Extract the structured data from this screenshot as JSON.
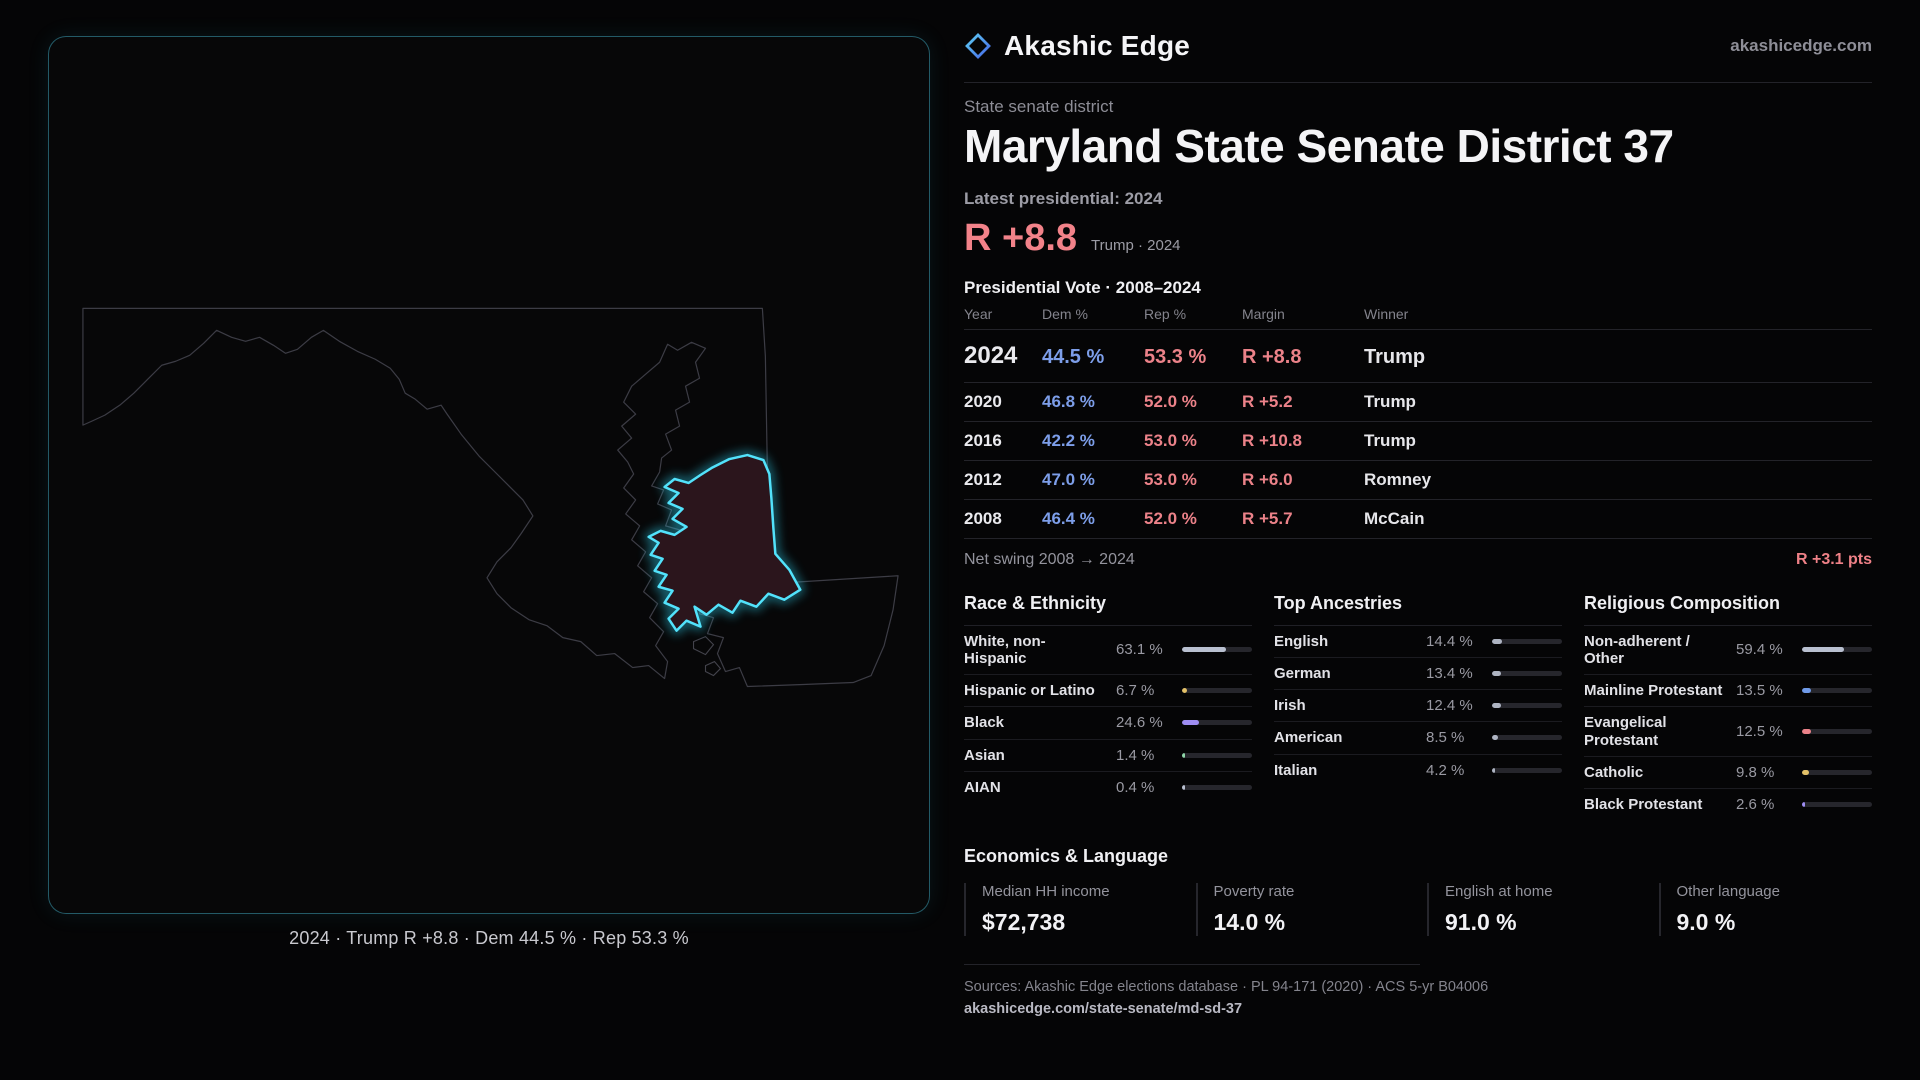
{
  "brand": {
    "name": "Akashic Edge",
    "site": "akashicedge.com",
    "logo": "diamond-icon"
  },
  "header": {
    "kicker": "State senate district",
    "title": "Maryland State Senate District 37",
    "latest": "Latest presidential: 2024",
    "margin": "R +8.8",
    "margin_note": "Trump · 2024"
  },
  "map": {
    "caption": "2024 · Trump R +8.8 · Dem 44.5 % · Rep 53.3 %",
    "district_name": "district-37",
    "accent": "#3fd9f5",
    "district_fill": "#2b151c"
  },
  "votes": {
    "title": "Presidential Vote · 2008–2024",
    "columns": [
      "Year",
      "Dem %",
      "Rep %",
      "Margin",
      "Winner"
    ],
    "rows": [
      {
        "year": "2024",
        "dem": "44.5 %",
        "rep": "53.3 %",
        "margin": "R +8.8",
        "winner": "Trump",
        "highlight": true
      },
      {
        "year": "2020",
        "dem": "46.8 %",
        "rep": "52.0 %",
        "margin": "R +5.2",
        "winner": "Trump",
        "highlight": false
      },
      {
        "year": "2016",
        "dem": "42.2 %",
        "rep": "53.0 %",
        "margin": "R +10.8",
        "winner": "Trump",
        "highlight": false
      },
      {
        "year": "2012",
        "dem": "47.0 %",
        "rep": "53.0 %",
        "margin": "R +6.0",
        "winner": "Romney",
        "highlight": false
      },
      {
        "year": "2008",
        "dem": "46.4 %",
        "rep": "52.0 %",
        "margin": "R +5.7",
        "winner": "McCain",
        "highlight": false
      }
    ],
    "swing_label": "Net swing 2008 → 2024",
    "swing_value": "R +3.1 pts"
  },
  "demographics": [
    {
      "title": "Race & Ethnicity",
      "rows": [
        {
          "label": "White, non-Hispanic",
          "value": "63.1 %",
          "pct": 63.1,
          "color": "#b9c0d0"
        },
        {
          "label": "Hispanic or Latino",
          "value": "6.7 %",
          "pct": 6.7,
          "color": "#e3c168"
        },
        {
          "label": "Black",
          "value": "24.6 %",
          "pct": 24.6,
          "color": "#9e8df2"
        },
        {
          "label": "Asian",
          "value": "1.4 %",
          "pct": 1.4,
          "color": "#8fd6a8"
        },
        {
          "label": "AIAN",
          "value": "0.4 %",
          "pct": 0.4,
          "color": "#b9c0d0"
        }
      ]
    },
    {
      "title": "Top Ancestries",
      "rows": [
        {
          "label": "English",
          "value": "14.4 %",
          "pct": 14.4,
          "color": "#aeb4c2"
        },
        {
          "label": "German",
          "value": "13.4 %",
          "pct": 13.4,
          "color": "#aeb4c2"
        },
        {
          "label": "Irish",
          "value": "12.4 %",
          "pct": 12.4,
          "color": "#aeb4c2"
        },
        {
          "label": "American",
          "value": "8.5 %",
          "pct": 8.5,
          "color": "#aeb4c2"
        },
        {
          "label": "Italian",
          "value": "4.2 %",
          "pct": 4.2,
          "color": "#aeb4c2"
        }
      ]
    },
    {
      "title": "Religious Composition",
      "rows": [
        {
          "label": "Non-adherent / Other",
          "value": "59.4 %",
          "pct": 59.4,
          "color": "#b9c0d0"
        },
        {
          "label": "Mainline Protestant",
          "value": "13.5 %",
          "pct": 13.5,
          "color": "#6f9ae8"
        },
        {
          "label": "Evangelical Protestant",
          "value": "12.5 %",
          "pct": 12.5,
          "color": "#ec8289"
        },
        {
          "label": "Catholic",
          "value": "9.8 %",
          "pct": 9.8,
          "color": "#e3c168"
        },
        {
          "label": "Black Protestant",
          "value": "2.6 %",
          "pct": 2.6,
          "color": "#9e8df2"
        }
      ]
    }
  ],
  "economics": {
    "title": "Economics & Language",
    "stats": [
      {
        "label": "Median HH income",
        "value": "$72,738"
      },
      {
        "label": "Poverty rate",
        "value": "14.0 %"
      },
      {
        "label": "English at home",
        "value": "91.0 %"
      },
      {
        "label": "Other language",
        "value": "9.0 %"
      }
    ]
  },
  "footer": {
    "sources": "Sources: Akashic Edge elections database · PL 94-171 (2020) · ACS 5-yr B04006",
    "permalink": "akashicedge.com/state-senate/md-sd-37"
  },
  "colors": {
    "dem": "#7d9ee9",
    "rep": "#ec8289",
    "accent": "#3fd9f5"
  }
}
